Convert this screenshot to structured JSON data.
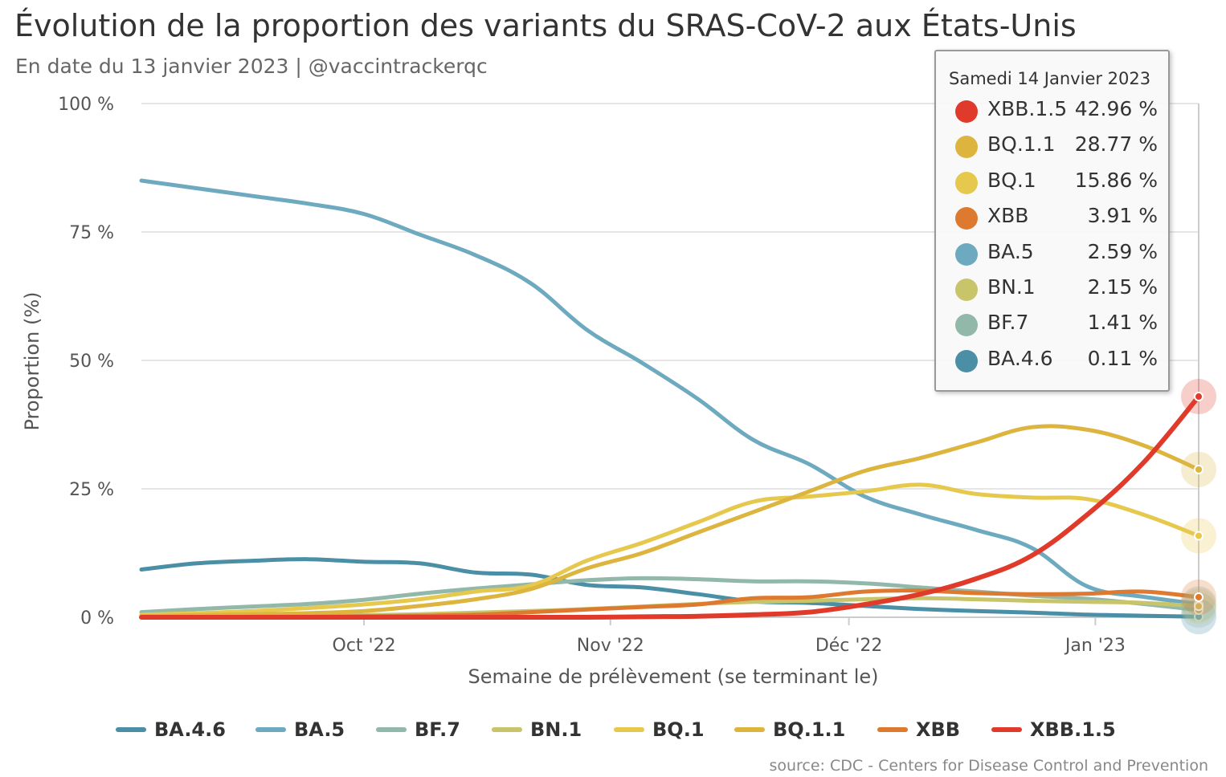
{
  "title": "Évolution de la proportion des variants du SRAS-CoV-2 aux États-Unis",
  "subtitle": "En date du 13 janvier 2023 | @vaccintrackerqc",
  "credits": "source: CDC - Centers for Disease Control and Prevention",
  "chart_data": {
    "type": "line",
    "title": "Évolution de la proportion des variants du SRAS-CoV-2 aux États-Unis",
    "xlabel": "Semaine de prélèvement (se terminant le)",
    "ylabel": "Proportion (%)",
    "ylim": [
      0,
      100
    ],
    "y_ticks": [
      0,
      25,
      50,
      75,
      100
    ],
    "y_tick_labels": [
      "0 %",
      "25 %",
      "50 %",
      "75 %",
      "100 %"
    ],
    "x_range": [
      "2022-09-03",
      "2023-01-14"
    ],
    "x_ticks": [
      "2022-10-01",
      "2022-11-01",
      "2022-12-01",
      "2023-01-01"
    ],
    "x_tick_labels": [
      "Oct '22",
      "Nov '22",
      "Déc '22",
      "Jan '23"
    ],
    "grid": "horizontal",
    "legend_position": "bottom",
    "x": [
      "2022-09-03",
      "2022-09-10",
      "2022-09-17",
      "2022-09-24",
      "2022-10-01",
      "2022-10-08",
      "2022-10-15",
      "2022-10-22",
      "2022-10-29",
      "2022-11-05",
      "2022-11-12",
      "2022-11-19",
      "2022-11-26",
      "2022-12-03",
      "2022-12-10",
      "2022-12-17",
      "2022-12-24",
      "2022-12-31",
      "2023-01-07",
      "2023-01-14"
    ],
    "series": [
      {
        "name": "BA.4.6",
        "color": "#4a8fa6",
        "values": [
          9.3,
          10.5,
          11.0,
          11.3,
          10.8,
          10.5,
          8.7,
          8.3,
          6.3,
          5.8,
          4.5,
          3.1,
          2.8,
          2.2,
          1.6,
          1.2,
          0.9,
          0.5,
          0.3,
          0.11
        ]
      },
      {
        "name": "BA.5",
        "color": "#6eaabf",
        "values": [
          85.0,
          83.5,
          82.0,
          80.5,
          78.5,
          74.5,
          70.5,
          65.0,
          56.0,
          49.5,
          42.5,
          34.5,
          29.8,
          23.5,
          20.0,
          17.0,
          13.5,
          6.0,
          4.0,
          2.59
        ]
      },
      {
        "name": "BF.7",
        "color": "#92b8a9",
        "values": [
          1.0,
          1.6,
          2.1,
          2.6,
          3.4,
          4.6,
          5.6,
          6.4,
          7.2,
          7.6,
          7.4,
          7.0,
          7.0,
          6.6,
          5.8,
          5.0,
          4.2,
          3.6,
          2.6,
          1.41
        ]
      },
      {
        "name": "BN.1",
        "color": "#c8c46a",
        "values": [
          0.0,
          0.1,
          0.2,
          0.3,
          0.4,
          0.6,
          0.9,
          1.2,
          1.6,
          2.1,
          2.6,
          3.0,
          3.2,
          3.5,
          3.7,
          3.5,
          3.2,
          3.0,
          2.8,
          2.15
        ]
      },
      {
        "name": "BQ.1",
        "color": "#e6c84c",
        "values": [
          0.5,
          0.8,
          1.2,
          1.8,
          2.5,
          3.5,
          5.0,
          6.2,
          11.0,
          14.5,
          18.5,
          22.5,
          23.5,
          24.5,
          25.8,
          24.0,
          23.3,
          23.0,
          20.0,
          15.86
        ]
      },
      {
        "name": "BQ.1.1",
        "color": "#dcb43e",
        "values": [
          0.2,
          0.4,
          0.6,
          0.8,
          1.2,
          2.2,
          3.5,
          5.5,
          9.5,
          12.5,
          16.5,
          20.5,
          24.5,
          28.5,
          31.0,
          34.0,
          37.0,
          36.5,
          33.5,
          28.77
        ]
      },
      {
        "name": "XBB",
        "color": "#dd7a30",
        "values": [
          0.0,
          0.0,
          0.1,
          0.1,
          0.2,
          0.3,
          0.5,
          1.0,
          1.5,
          2.0,
          2.5,
          3.7,
          3.9,
          5.0,
          5.2,
          4.7,
          4.5,
          4.6,
          5.0,
          3.91
        ]
      },
      {
        "name": "XBB.1.5",
        "color": "#e03a2b",
        "values": [
          0.0,
          0.0,
          0.0,
          0.0,
          0.0,
          0.0,
          0.0,
          0.0,
          0.0,
          0.1,
          0.2,
          0.5,
          1.0,
          2.5,
          4.5,
          7.5,
          12.0,
          20.0,
          30.0,
          42.96
        ]
      }
    ]
  },
  "tooltip": {
    "header": "Samedi 14 Janvier 2023",
    "rows": [
      {
        "name": "XBB.1.5",
        "value": "42.96 %",
        "color": "#e03a2b"
      },
      {
        "name": "BQ.1.1",
        "value": "28.77 %",
        "color": "#dcb43e"
      },
      {
        "name": "BQ.1",
        "value": "15.86 %",
        "color": "#e6c84c"
      },
      {
        "name": "XBB",
        "value": "3.91 %",
        "color": "#dd7a30"
      },
      {
        "name": "BA.5",
        "value": "2.59 %",
        "color": "#6eaabf"
      },
      {
        "name": "BN.1",
        "value": "2.15 %",
        "color": "#c8c46a"
      },
      {
        "name": "BF.7",
        "value": "1.41 %",
        "color": "#92b8a9"
      },
      {
        "name": "BA.4.6",
        "value": "0.11 %",
        "color": "#4a8fa6"
      }
    ]
  }
}
